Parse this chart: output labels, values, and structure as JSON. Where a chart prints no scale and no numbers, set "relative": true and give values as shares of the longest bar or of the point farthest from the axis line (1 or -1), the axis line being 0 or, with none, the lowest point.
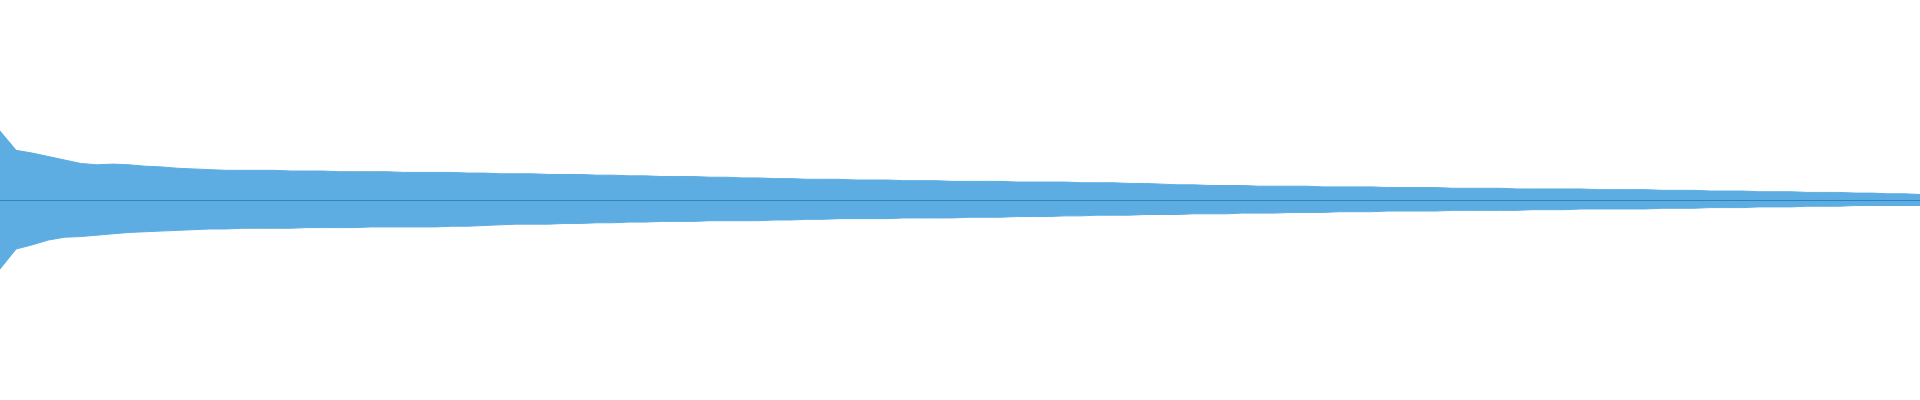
{
  "chart_data": {
    "type": "area",
    "relative": true,
    "categories": [
      null,
      null,
      null,
      null,
      null,
      null,
      null,
      null,
      null,
      null,
      null,
      null,
      null,
      null,
      null,
      null,
      null,
      null,
      null,
      null,
      null,
      null,
      null,
      null,
      null,
      null,
      null,
      null,
      null,
      null,
      null,
      null,
      null,
      null,
      null,
      null,
      null,
      null,
      null,
      null,
      null,
      null,
      null,
      null,
      null,
      null,
      null,
      null,
      null,
      null,
      null,
      null,
      null,
      null,
      null,
      null,
      null,
      null,
      null,
      null,
      null,
      null,
      null,
      null,
      null,
      null,
      null,
      null,
      null,
      null,
      null,
      null,
      null,
      null,
      null,
      null,
      null,
      null,
      null,
      null,
      null,
      null,
      null,
      null,
      null,
      null,
      null,
      null,
      null,
      null,
      null,
      null,
      null,
      null,
      null,
      null,
      null,
      null,
      null,
      null,
      null,
      null,
      null,
      null,
      null,
      null,
      null,
      null,
      null,
      null,
      null,
      null,
      null,
      null,
      null,
      null,
      null,
      null,
      null,
      null
    ],
    "series": [
      {
        "color": "#5dade2",
        "values": [
          1,
          0.72,
          0.68,
          0.63,
          0.58,
          0.53,
          0.51,
          0.52,
          0.51,
          0.49,
          0.48,
          0.46,
          0.45,
          0.44,
          0.43,
          0.43,
          0.43,
          0.43,
          0.42,
          0.42,
          0.42,
          0.41,
          0.41,
          0.41,
          0.41,
          0.4,
          0.4,
          0.4,
          0.4,
          0.39,
          0.39,
          0.38,
          0.38,
          0.38,
          0.37,
          0.37,
          0.37,
          0.36,
          0.36,
          0.35,
          0.35,
          0.34,
          0.34,
          0.34,
          0.33,
          0.33,
          0.32,
          0.32,
          0.31,
          0.31,
          0.3,
          0.3,
          0.3,
          0.29,
          0.29,
          0.29,
          0.28,
          0.28,
          0.28,
          0.27,
          0.27,
          0.27,
          0.27,
          0.26,
          0.26,
          0.26,
          0.26,
          0.25,
          0.25,
          0.25,
          0.24,
          0.24,
          0.23,
          0.22,
          0.22,
          0.21,
          0.21,
          0.21,
          0.2,
          0.2,
          0.2,
          0.2,
          0.19,
          0.19,
          0.19,
          0.19,
          0.18,
          0.18,
          0.18,
          0.18,
          0.17,
          0.17,
          0.17,
          0.17,
          0.16,
          0.16,
          0.16,
          0.16,
          0.16,
          0.15,
          0.15,
          0.15,
          0.15,
          0.14,
          0.14,
          0.14,
          0.13,
          0.13,
          0.13,
          0.12,
          0.12,
          0.12,
          0.11,
          0.11,
          0.11,
          0.1,
          0.1,
          0.09,
          0.09,
          0.08
        ]
      },
      {
        "color": "#5dade2",
        "values": [
          -1,
          -0.71,
          -0.65,
          -0.58,
          -0.54,
          -0.53,
          -0.51,
          -0.49,
          -0.47,
          -0.46,
          -0.45,
          -0.44,
          -0.43,
          -0.42,
          -0.42,
          -0.41,
          -0.41,
          -0.41,
          -0.41,
          -0.4,
          -0.4,
          -0.4,
          -0.4,
          -0.39,
          -0.39,
          -0.39,
          -0.39,
          -0.39,
          -0.38,
          -0.38,
          -0.37,
          -0.36,
          -0.35,
          -0.35,
          -0.35,
          -0.34,
          -0.34,
          -0.33,
          -0.33,
          -0.32,
          -0.32,
          -0.31,
          -0.31,
          -0.31,
          -0.3,
          -0.3,
          -0.3,
          -0.3,
          -0.29,
          -0.29,
          -0.28,
          -0.28,
          -0.27,
          -0.27,
          -0.27,
          -0.27,
          -0.26,
          -0.26,
          -0.26,
          -0.26,
          -0.25,
          -0.25,
          -0.25,
          -0.24,
          -0.24,
          -0.24,
          -0.23,
          -0.23,
          -0.22,
          -0.22,
          -0.22,
          -0.21,
          -0.21,
          -0.21,
          -0.2,
          -0.2,
          -0.2,
          -0.19,
          -0.19,
          -0.19,
          -0.18,
          -0.18,
          -0.18,
          -0.17,
          -0.17,
          -0.17,
          -0.16,
          -0.16,
          -0.16,
          -0.16,
          -0.15,
          -0.15,
          -0.15,
          -0.15,
          -0.15,
          -0.14,
          -0.14,
          -0.14,
          -0.13,
          -0.13,
          -0.13,
          -0.13,
          -0.13,
          -0.12,
          -0.12,
          -0.12,
          -0.11,
          -0.11,
          -0.11,
          -0.1,
          -0.1,
          -0.1,
          -0.09,
          -0.09,
          -0.09,
          -0.08,
          -0.08,
          -0.08,
          -0.08,
          -0.08
        ]
      }
    ],
    "ref_lines": [
      {
        "axis": "y",
        "value": 0,
        "color": "#2e86c1"
      }
    ]
  }
}
